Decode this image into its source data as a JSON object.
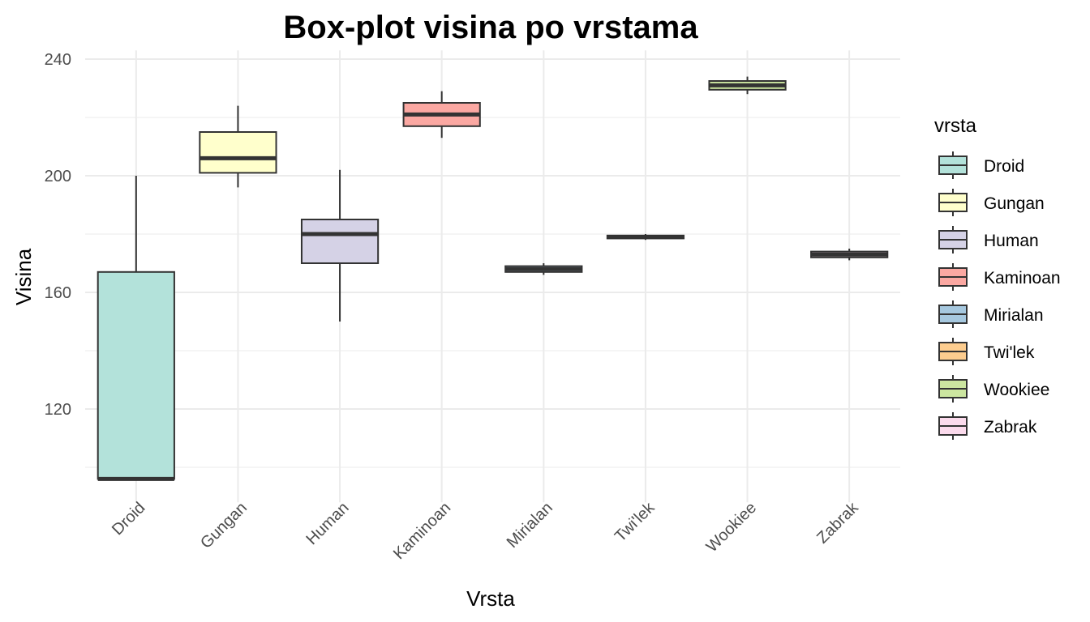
{
  "chart_data": {
    "type": "boxplot",
    "title": "Box-plot visina po vrstama",
    "xlabel": "Vrsta",
    "ylabel": "Visina",
    "ylim": [
      88,
      243
    ],
    "yticks": [
      120,
      160,
      200,
      240
    ],
    "grid": true,
    "legend": {
      "title": "vrsta",
      "position": "right"
    },
    "categories": [
      "Droid",
      "Gungan",
      "Human",
      "Kaminoan",
      "Mirialan",
      "Twi'lek",
      "Wookiee",
      "Zabrak"
    ],
    "series": [
      {
        "name": "Droid",
        "min": 96,
        "q1": 96,
        "median": 96,
        "q3": 167,
        "max": 200,
        "color": "#B3E2DA"
      },
      {
        "name": "Gungan",
        "min": 196,
        "q1": 201,
        "median": 206,
        "q3": 215,
        "max": 224,
        "color": "#FFFFCC"
      },
      {
        "name": "Human",
        "min": 150,
        "q1": 170,
        "median": 180,
        "q3": 185,
        "max": 202,
        "color": "#D5D2E6"
      },
      {
        "name": "Kaminoan",
        "min": 213,
        "q1": 217,
        "median": 221,
        "q3": 225,
        "max": 229,
        "color": "#FBA8A2"
      },
      {
        "name": "Mirialan",
        "min": 166,
        "q1": 167,
        "median": 168,
        "q3": 169,
        "max": 170,
        "color": "#A6C8DF"
      },
      {
        "name": "Twi'lek",
        "min": 178,
        "q1": 178.5,
        "median": 179,
        "q3": 179.5,
        "max": 180,
        "color": "#FDCD8F"
      },
      {
        "name": "Wookiee",
        "min": 228,
        "q1": 229.5,
        "median": 231,
        "q3": 232.5,
        "max": 234,
        "color": "#CCE6A0"
      },
      {
        "name": "Zabrak",
        "min": 171,
        "q1": 172,
        "median": 173,
        "q3": 174,
        "max": 175,
        "color": "#FBDAEC"
      }
    ]
  }
}
